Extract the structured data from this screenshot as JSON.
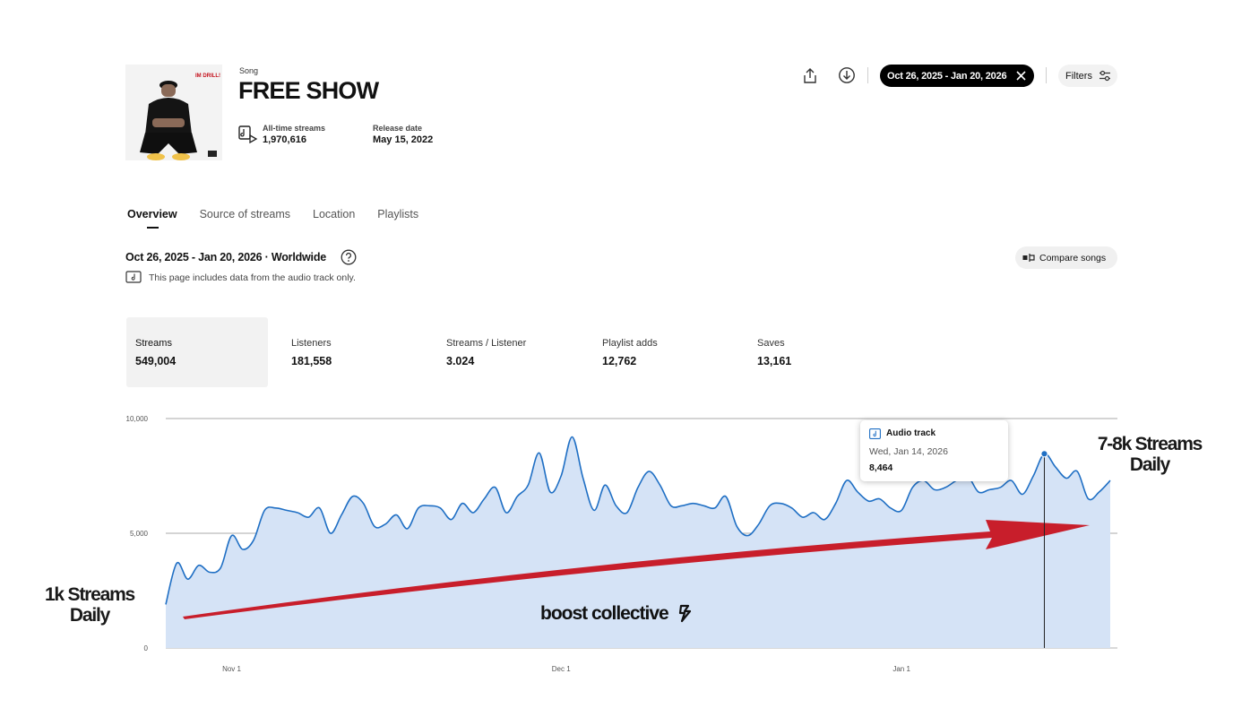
{
  "header": {
    "kicker": "Song",
    "title": "FREE SHOW",
    "cover_art_text": "IM DRILL!",
    "all_time_label": "All-time streams",
    "all_time_value": "1,970,616",
    "release_label": "Release date",
    "release_value": "May 15, 2022"
  },
  "toolbar": {
    "share_icon": "share-icon",
    "download_icon": "download-icon",
    "date_range": "Oct 26, 2025 - Jan 20, 2026",
    "filters_label": "Filters"
  },
  "tabs": [
    {
      "label": "Overview",
      "active": true
    },
    {
      "label": "Source of streams",
      "active": false
    },
    {
      "label": "Location",
      "active": false
    },
    {
      "label": "Playlists",
      "active": false
    }
  ],
  "summary": {
    "range_text": "Oct 26, 2025 - Jan 20, 2026 · Worldwide",
    "note": "This page includes data from the audio track only.",
    "compare_label": "Compare songs"
  },
  "kpis": [
    {
      "label": "Streams",
      "value": "549,004",
      "selected": true
    },
    {
      "label": "Listeners",
      "value": "181,558",
      "selected": false
    },
    {
      "label": "Streams / Listener",
      "value": "3.024",
      "selected": false
    },
    {
      "label": "Playlist adds",
      "value": "12,762",
      "selected": false
    },
    {
      "label": "Saves",
      "value": "13,161",
      "selected": false
    }
  ],
  "tooltip": {
    "title": "Audio track",
    "date": "Wed, Jan 14, 2026",
    "value": "8,464"
  },
  "annotations": {
    "left_line1": "1k Streams",
    "left_line2": "Daily",
    "right_line1": "7-8k Streams",
    "right_line2": "Daily",
    "watermark": "boost collective"
  },
  "colors": {
    "line": "#1f6fc4",
    "area": "#d5e3f6",
    "arrow": "#c81e2b",
    "pill_bg": "#000000"
  },
  "chart_data": {
    "type": "area",
    "title": "",
    "xlabel": "",
    "ylabel": "",
    "ylim": [
      0,
      10000
    ],
    "yticks": [
      0,
      5000,
      10000
    ],
    "ytick_labels": [
      "0",
      "5,000",
      "10,000"
    ],
    "xtick_labels": [
      {
        "label": "Nov 1",
        "date": "2025-11-01"
      },
      {
        "label": "Dec 1",
        "date": "2025-12-01"
      },
      {
        "label": "Jan 1",
        "date": "2026-01-01"
      }
    ],
    "grid": true,
    "series": [
      {
        "name": "Audio track",
        "x": [
          "2025-10-26",
          "2025-10-27",
          "2025-10-28",
          "2025-10-29",
          "2025-10-30",
          "2025-10-31",
          "2025-11-01",
          "2025-11-02",
          "2025-11-03",
          "2025-11-04",
          "2025-11-05",
          "2025-11-06",
          "2025-11-07",
          "2025-11-08",
          "2025-11-09",
          "2025-11-10",
          "2025-11-11",
          "2025-11-12",
          "2025-11-13",
          "2025-11-14",
          "2025-11-15",
          "2025-11-16",
          "2025-11-17",
          "2025-11-18",
          "2025-11-19",
          "2025-11-20",
          "2025-11-21",
          "2025-11-22",
          "2025-11-23",
          "2025-11-24",
          "2025-11-25",
          "2025-11-26",
          "2025-11-27",
          "2025-11-28",
          "2025-11-29",
          "2025-11-30",
          "2025-12-01",
          "2025-12-02",
          "2025-12-03",
          "2025-12-04",
          "2025-12-05",
          "2025-12-06",
          "2025-12-07",
          "2025-12-08",
          "2025-12-09",
          "2025-12-10",
          "2025-12-11",
          "2025-12-12",
          "2025-12-13",
          "2025-12-14",
          "2025-12-15",
          "2025-12-16",
          "2025-12-17",
          "2025-12-18",
          "2025-12-19",
          "2025-12-20",
          "2025-12-21",
          "2025-12-22",
          "2025-12-23",
          "2025-12-24",
          "2025-12-25",
          "2025-12-26",
          "2025-12-27",
          "2025-12-28",
          "2025-12-29",
          "2025-12-30",
          "2025-12-31",
          "2026-01-01",
          "2026-01-02",
          "2026-01-03",
          "2026-01-04",
          "2026-01-05",
          "2026-01-06",
          "2026-01-07",
          "2026-01-08",
          "2026-01-09",
          "2026-01-10",
          "2026-01-11",
          "2026-01-12",
          "2026-01-13",
          "2026-01-14",
          "2026-01-15",
          "2026-01-16",
          "2026-01-17",
          "2026-01-18",
          "2026-01-19",
          "2026-01-20"
        ],
        "values": [
          1900,
          3700,
          3000,
          3600,
          3300,
          3500,
          4900,
          4300,
          4700,
          6000,
          6100,
          6000,
          5900,
          5700,
          6100,
          5000,
          5800,
          6600,
          6300,
          5300,
          5400,
          5800,
          5200,
          6100,
          6200,
          6100,
          5600,
          6300,
          5900,
          6500,
          7000,
          5900,
          6600,
          7100,
          8500,
          6800,
          7500,
          9200,
          7400,
          6000,
          7100,
          6200,
          5900,
          7000,
          7700,
          7100,
          6200,
          6200,
          6300,
          6200,
          6100,
          6600,
          5300,
          4900,
          5400,
          6200,
          6300,
          6100,
          5700,
          5900,
          5600,
          6300,
          7300,
          6800,
          6400,
          6500,
          6100,
          6000,
          7000,
          7300,
          6900,
          7000,
          7300,
          7500,
          6800,
          6900,
          7000,
          7300,
          6700,
          7500,
          8464,
          7900,
          7400,
          7700,
          6500,
          6800,
          7300
        ]
      }
    ],
    "highlight": {
      "date": "2026-01-14",
      "value": 8464
    }
  }
}
